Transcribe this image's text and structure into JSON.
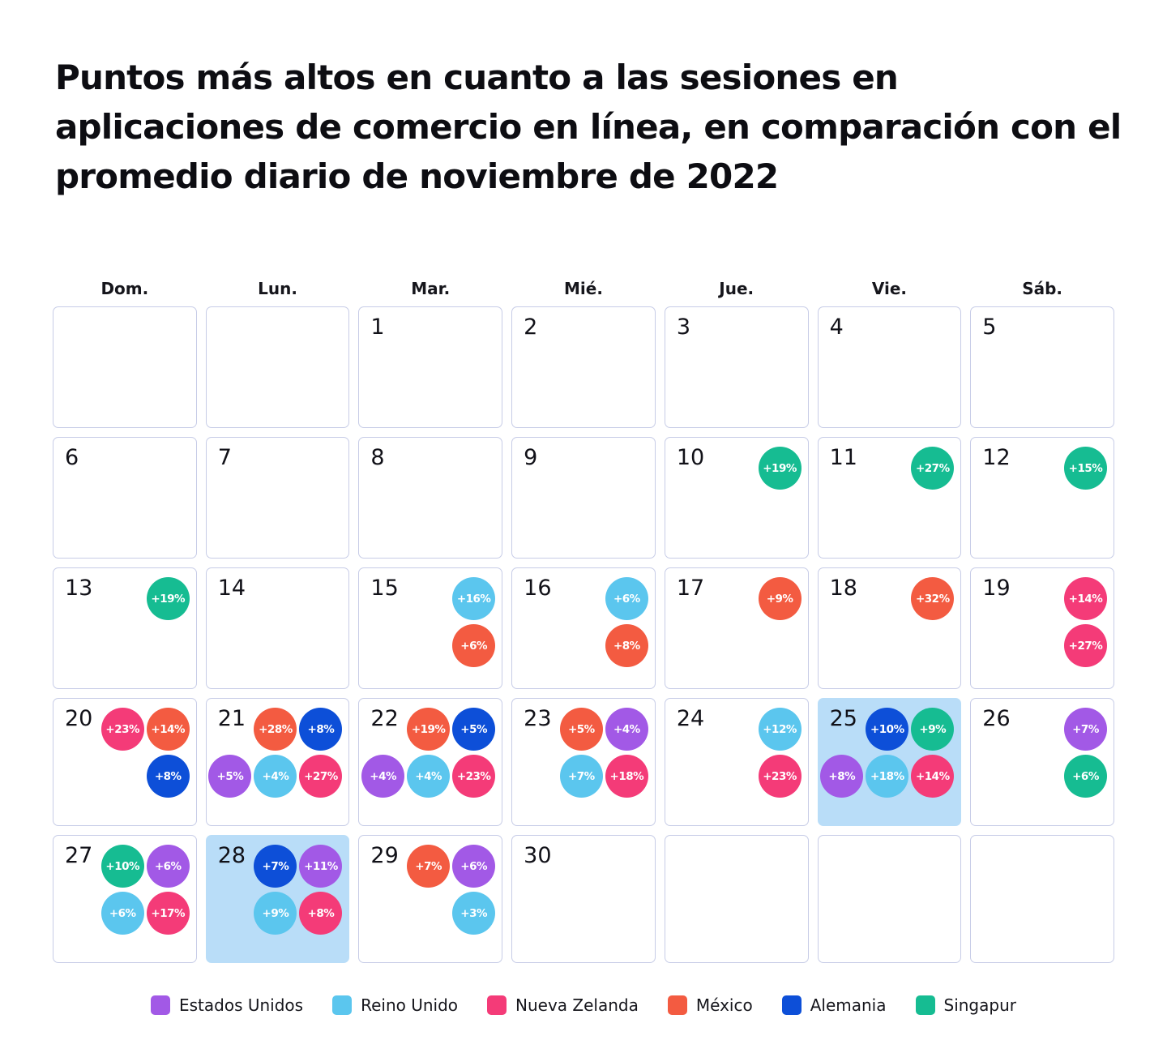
{
  "title": "Puntos más altos en cuanto a las sesiones en aplicaciones de comercio en línea, en comparación con el promedio diario de noviembre de 2022",
  "weekdays": [
    "Dom.",
    "Lun.",
    "Mar.",
    "Mié.",
    "Jue.",
    "Vie.",
    "Sáb."
  ],
  "legend": [
    {
      "label": "Estados Unidos",
      "color": "#a259e6"
    },
    {
      "label": "Reino Unido",
      "color": "#5bc6ee"
    },
    {
      "label": "Nueva Zelanda",
      "color": "#f43b78"
    },
    {
      "label": "México",
      "color": "#f35b41"
    },
    {
      "label": "Alemania",
      "color": "#0d4fd8"
    },
    {
      "label": "Singapur",
      "color": "#16bc92"
    }
  ],
  "highlight_color": "#b9ddf8",
  "chart_data": {
    "type": "heatmap",
    "subtype": "calendar",
    "month": "noviembre de 2022",
    "unit": "aumento de sesiones vs. promedio diario (%)",
    "days": [
      {
        "day": "",
        "highlight": false,
        "top": [],
        "bottom": []
      },
      {
        "day": "",
        "highlight": false,
        "top": [],
        "bottom": []
      },
      {
        "day": "1",
        "highlight": false,
        "top": [],
        "bottom": []
      },
      {
        "day": "2",
        "highlight": false,
        "top": [],
        "bottom": []
      },
      {
        "day": "3",
        "highlight": false,
        "top": [],
        "bottom": []
      },
      {
        "day": "4",
        "highlight": false,
        "top": [],
        "bottom": []
      },
      {
        "day": "5",
        "highlight": false,
        "top": [],
        "bottom": []
      },
      {
        "day": "6",
        "highlight": false,
        "top": [],
        "bottom": []
      },
      {
        "day": "7",
        "highlight": false,
        "top": [],
        "bottom": []
      },
      {
        "day": "8",
        "highlight": false,
        "top": [],
        "bottom": []
      },
      {
        "day": "9",
        "highlight": false,
        "top": [],
        "bottom": []
      },
      {
        "day": "10",
        "highlight": false,
        "top": [
          {
            "value": "+19%",
            "country": "Singapur"
          }
        ],
        "bottom": []
      },
      {
        "day": "11",
        "highlight": false,
        "top": [
          {
            "value": "+27%",
            "country": "Singapur"
          }
        ],
        "bottom": []
      },
      {
        "day": "12",
        "highlight": false,
        "top": [
          {
            "value": "+15%",
            "country": "Singapur"
          }
        ],
        "bottom": []
      },
      {
        "day": "13",
        "highlight": false,
        "top": [
          {
            "value": "+19%",
            "country": "Singapur"
          }
        ],
        "bottom": []
      },
      {
        "day": "14",
        "highlight": false,
        "top": [],
        "bottom": []
      },
      {
        "day": "15",
        "highlight": false,
        "top": [
          {
            "value": "+16%",
            "country": "Reino Unido"
          }
        ],
        "bottom": [
          {
            "value": "+6%",
            "country": "México"
          }
        ]
      },
      {
        "day": "16",
        "highlight": false,
        "top": [
          {
            "value": "+6%",
            "country": "Reino Unido"
          }
        ],
        "bottom": [
          {
            "value": "+8%",
            "country": "México"
          }
        ]
      },
      {
        "day": "17",
        "highlight": false,
        "top": [
          {
            "value": "+9%",
            "country": "México"
          }
        ],
        "bottom": []
      },
      {
        "day": "18",
        "highlight": false,
        "top": [
          {
            "value": "+32%",
            "country": "México"
          }
        ],
        "bottom": []
      },
      {
        "day": "19",
        "highlight": false,
        "top": [
          {
            "value": "+14%",
            "country": "Nueva Zelanda"
          }
        ],
        "bottom": [
          {
            "value": "+27%",
            "country": "Nueva Zelanda"
          }
        ]
      },
      {
        "day": "20",
        "highlight": false,
        "top": [
          {
            "value": "+23%",
            "country": "Nueva Zelanda"
          },
          {
            "value": "+14%",
            "country": "México"
          }
        ],
        "bottom": [
          {
            "value": "+8%",
            "country": "Alemania"
          }
        ]
      },
      {
        "day": "21",
        "highlight": false,
        "top": [
          {
            "value": "+28%",
            "country": "México"
          },
          {
            "value": "+8%",
            "country": "Alemania"
          }
        ],
        "bottom": [
          {
            "value": "+5%",
            "country": "Estados Unidos"
          },
          {
            "value": "+4%",
            "country": "Reino Unido"
          },
          {
            "value": "+27%",
            "country": "Nueva Zelanda"
          }
        ]
      },
      {
        "day": "22",
        "highlight": false,
        "top": [
          {
            "value": "+19%",
            "country": "México"
          },
          {
            "value": "+5%",
            "country": "Alemania"
          }
        ],
        "bottom": [
          {
            "value": "+4%",
            "country": "Estados Unidos"
          },
          {
            "value": "+4%",
            "country": "Reino Unido"
          },
          {
            "value": "+23%",
            "country": "Nueva Zelanda"
          }
        ]
      },
      {
        "day": "23",
        "highlight": false,
        "top": [
          {
            "value": "+5%",
            "country": "México"
          },
          {
            "value": "+4%",
            "country": "Estados Unidos"
          }
        ],
        "bottom": [
          {
            "value": "+7%",
            "country": "Reino Unido"
          },
          {
            "value": "+18%",
            "country": "Nueva Zelanda"
          }
        ]
      },
      {
        "day": "24",
        "highlight": false,
        "top": [
          {
            "value": "+12%",
            "country": "Reino Unido"
          }
        ],
        "bottom": [
          {
            "value": "+23%",
            "country": "Nueva Zelanda"
          }
        ]
      },
      {
        "day": "25",
        "highlight": true,
        "top": [
          {
            "value": "+10%",
            "country": "Alemania"
          },
          {
            "value": "+9%",
            "country": "Singapur"
          }
        ],
        "bottom": [
          {
            "value": "+8%",
            "country": "Estados Unidos"
          },
          {
            "value": "+18%",
            "country": "Reino Unido"
          },
          {
            "value": "+14%",
            "country": "Nueva Zelanda"
          }
        ]
      },
      {
        "day": "26",
        "highlight": false,
        "top": [
          {
            "value": "+7%",
            "country": "Estados Unidos"
          }
        ],
        "bottom": [
          {
            "value": "+6%",
            "country": "Singapur"
          }
        ]
      },
      {
        "day": "27",
        "highlight": false,
        "top": [
          {
            "value": "+10%",
            "country": "Singapur"
          },
          {
            "value": "+6%",
            "country": "Estados Unidos"
          }
        ],
        "bottom": [
          {
            "value": "+6%",
            "country": "Reino Unido"
          },
          {
            "value": "+17%",
            "country": "Nueva Zelanda"
          }
        ]
      },
      {
        "day": "28",
        "highlight": true,
        "top": [
          {
            "value": "+7%",
            "country": "Alemania"
          },
          {
            "value": "+11%",
            "country": "Estados Unidos"
          }
        ],
        "bottom": [
          {
            "value": "+9%",
            "country": "Reino Unido"
          },
          {
            "value": "+8%",
            "country": "Nueva Zelanda"
          }
        ]
      },
      {
        "day": "29",
        "highlight": false,
        "top": [
          {
            "value": "+7%",
            "country": "México"
          },
          {
            "value": "+6%",
            "country": "Estados Unidos"
          }
        ],
        "bottom": [
          {
            "value": "+3%",
            "country": "Reino Unido"
          }
        ]
      },
      {
        "day": "30",
        "highlight": false,
        "top": [],
        "bottom": []
      },
      {
        "day": "",
        "highlight": false,
        "top": [],
        "bottom": []
      },
      {
        "day": "",
        "highlight": false,
        "top": [],
        "bottom": []
      },
      {
        "day": "",
        "highlight": false,
        "top": [],
        "bottom": []
      }
    ]
  }
}
